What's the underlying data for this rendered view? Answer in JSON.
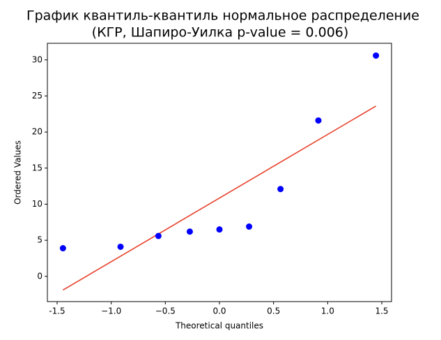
{
  "chart_data": {
    "type": "scatter",
    "title": "График квантиль-квантиль нормальное распределение",
    "subtitle": "(КГР, Шапиро-Уилка p-value = 0.006)",
    "x_label": "Theoretical quantiles",
    "y_label": "Ordered Values",
    "points": {
      "color": "#0000ff",
      "x": [
        -1.446,
        -0.914,
        -0.564,
        -0.274,
        0,
        0.274,
        0.564,
        0.914,
        1.446
      ],
      "values": [
        3.9,
        4.1,
        5.6,
        6.2,
        6.5,
        6.9,
        12.1,
        21.6,
        30.6
      ]
    },
    "fit_line": {
      "color": "#e8402a",
      "x": [
        -1.446,
        1.446
      ],
      "values": [
        -1.9,
        23.6
      ]
    },
    "xlim": [
      -1.59,
      1.59
    ],
    "xticks": [
      -1.5,
      {
        "value": -1.0,
        "label": "−1.0"
      },
      {
        "value": -0.5,
        "label": "−0.5"
      },
      {
        "value": 0,
        "label": "0.0"
      },
      0.5,
      {
        "value": 1,
        "label": "1.0"
      },
      1.5
    ],
    "ylim": [
      -3.5,
      32.3
    ],
    "yticks": [
      0,
      5,
      10,
      15,
      20,
      25,
      30
    ]
  }
}
